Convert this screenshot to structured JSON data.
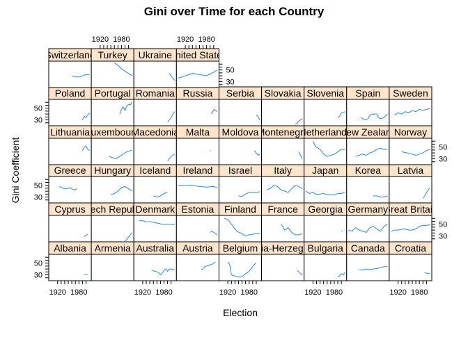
{
  "chart_data": {
    "type": "line",
    "title": "Gini over Time for each Country",
    "xlabel": "Election",
    "ylabel": "Gini Coefficient",
    "xlim": [
      1895,
      2015
    ],
    "ylim": [
      20,
      65
    ],
    "x_ticks": [
      "1920",
      "1980"
    ],
    "y_ticks": [
      "30",
      "50"
    ],
    "grid": false,
    "layout": "lattice 9 columns x 6 rows, strip headers, bottom row first",
    "colors": {
      "line": "#2E86E0",
      "strip": "#FFE5CC",
      "frame": "#000000"
    },
    "panels": [
      {
        "country": "Albania",
        "row": 0,
        "col": 0,
        "x": [
          1996,
          2002,
          2005
        ],
        "y": [
          30,
          31,
          31
        ]
      },
      {
        "country": "Armenia",
        "row": 0,
        "col": 1,
        "x": [],
        "y": []
      },
      {
        "country": "Australia",
        "row": 0,
        "col": 2,
        "x": [
          1945,
          1955,
          1965,
          1970,
          1975,
          1980,
          1985,
          1990,
          1995,
          2000,
          2005,
          2010
        ],
        "y": [
          38,
          36,
          34,
          30,
          33,
          38,
          40,
          36,
          40,
          40,
          39,
          40
        ]
      },
      {
        "country": "Austria",
        "row": 0,
        "col": 3,
        "x": [
          1965,
          1975,
          1985,
          1995,
          2005
        ],
        "y": [
          38,
          44,
          46,
          48,
          52
        ]
      },
      {
        "country": "Belgium",
        "row": 0,
        "col": 4,
        "x": [
          1920,
          1925,
          1930,
          1940,
          1950,
          1960,
          1970,
          1980,
          1990,
          1995,
          2000
        ],
        "y": [
          52,
          48,
          30,
          28,
          26,
          27,
          32,
          36,
          44,
          48,
          50
        ]
      },
      {
        "country": "Bosnia-Herzegovina",
        "row": 0,
        "col": 5,
        "x": [
          1995,
          2000,
          2005,
          2010
        ],
        "y": [
          38,
          35,
          32,
          30
        ]
      },
      {
        "country": "Bulgaria",
        "row": 0,
        "col": 6,
        "x": [
          1990,
          1995,
          2000,
          2005,
          2010
        ],
        "y": [
          26,
          28,
          32,
          30,
          34
        ]
      },
      {
        "country": "Canada",
        "row": 0,
        "col": 7,
        "x": [
          1930,
          1940,
          1950,
          1960,
          1970,
          1980,
          1990,
          2000,
          2010
        ],
        "y": [
          39,
          38,
          40,
          39,
          40,
          41,
          42,
          44,
          44
        ]
      },
      {
        "country": "Croatia",
        "row": 0,
        "col": 8,
        "x": [
          1995,
          2000,
          2005,
          2010
        ],
        "y": [
          34,
          33,
          32,
          33
        ]
      },
      {
        "country": "Cyprus",
        "row": 1,
        "col": 0,
        "x": [
          1995,
          2000,
          2005
        ],
        "y": [
          29,
          31,
          33
        ]
      },
      {
        "country": "Czech Republic",
        "row": 1,
        "col": 1,
        "x": [
          1990,
          1995,
          2000,
          2005,
          2010
        ],
        "y": [
          21,
          24,
          28,
          32,
          36
        ]
      },
      {
        "country": "Denmark",
        "row": 1,
        "col": 2,
        "x": [
          1910,
          1920,
          1930,
          1945,
          1960,
          1975,
          1990,
          2000,
          2010
        ],
        "y": [
          56,
          56,
          54,
          54,
          52,
          50,
          50,
          50,
          49
        ]
      },
      {
        "country": "Estonia",
        "row": 1,
        "col": 3,
        "x": [
          1990,
          1995,
          2000,
          2005,
          2010
        ],
        "y": [
          36,
          38,
          36,
          34,
          32
        ]
      },
      {
        "country": "Finland",
        "row": 1,
        "col": 4,
        "x": [
          1910,
          1920,
          1930,
          1945,
          1960,
          1970,
          1980,
          1990,
          2000,
          2010
        ],
        "y": [
          60,
          58,
          50,
          38,
          34,
          30,
          32,
          33,
          34,
          34
        ]
      },
      {
        "country": "France",
        "row": 1,
        "col": 5,
        "x": [
          1950,
          1955,
          1960,
          1965,
          1970,
          1980,
          1990,
          2000,
          2010
        ],
        "y": [
          50,
          46,
          40,
          42,
          44,
          36,
          32,
          32,
          34
        ]
      },
      {
        "country": "Georgia",
        "row": 1,
        "col": 6,
        "x": [
          2000,
          2003
        ],
        "y": [
          38,
          38
        ]
      },
      {
        "country": "Germany",
        "row": 1,
        "col": 7,
        "x": [
          1900,
          1910,
          1920,
          1930,
          1950,
          1960,
          1970,
          1980,
          1990,
          2000,
          2010
        ],
        "y": [
          40,
          38,
          44,
          40,
          36,
          44,
          46,
          42,
          38,
          46,
          50
        ]
      },
      {
        "country": "Great Britain",
        "row": 1,
        "col": 8,
        "x": [
          1900,
          1910,
          1920,
          1935,
          1950,
          1960,
          1970,
          1980,
          1990,
          2000,
          2010
        ],
        "y": [
          38,
          40,
          40,
          42,
          40,
          40,
          42,
          46,
          48,
          48,
          49
        ]
      },
      {
        "country": "Greece",
        "row": 2,
        "col": 0,
        "x": [
          1925,
          1935,
          1945,
          1955,
          1965,
          1975
        ],
        "y": [
          48,
          45,
          44,
          46,
          42,
          44
        ]
      },
      {
        "country": "Hungary",
        "row": 2,
        "col": 1,
        "x": [
          1950,
          1960,
          1970,
          1980,
          1990,
          2000,
          2010
        ],
        "y": [
          34,
          36,
          40,
          46,
          48,
          44,
          40
        ]
      },
      {
        "country": "Iceland",
        "row": 2,
        "col": 2,
        "x": [
          1950,
          1960,
          1970,
          1980,
          1990
        ],
        "y": [
          32,
          30,
          32,
          36,
          38
        ]
      },
      {
        "country": "Ireland",
        "row": 2,
        "col": 3,
        "x": [
          1900,
          1920,
          1940,
          1960,
          1980,
          2000,
          2010
        ],
        "y": [
          50,
          50,
          50,
          48,
          47,
          48,
          46
        ]
      },
      {
        "country": "Israel",
        "row": 2,
        "col": 4,
        "x": [
          1950,
          1960,
          1970,
          1980,
          1990,
          2000,
          2010
        ],
        "y": [
          32,
          31,
          35,
          38,
          38,
          38,
          39
        ]
      },
      {
        "country": "Italy",
        "row": 2,
        "col": 5,
        "x": [
          1910,
          1920,
          1930,
          1940,
          1950,
          1960,
          1970,
          1980,
          1990,
          2000,
          2010
        ],
        "y": [
          42,
          45,
          50,
          48,
          42,
          40,
          38,
          44,
          50,
          48,
          44
        ]
      },
      {
        "country": "Japan",
        "row": 2,
        "col": 6,
        "x": [
          1900,
          1910,
          1920,
          1930,
          1940,
          1950,
          1960,
          1970,
          1980,
          1990,
          2000,
          2010
        ],
        "y": [
          40,
          36,
          38,
          34,
          35,
          36,
          34,
          34,
          34,
          36,
          36,
          38
        ]
      },
      {
        "country": "Korea",
        "row": 2,
        "col": 7,
        "x": [
          1970,
          1980,
          1990,
          2000,
          2010
        ],
        "y": [
          32,
          32,
          30,
          30,
          32
        ]
      },
      {
        "country": "Latvia",
        "row": 2,
        "col": 8,
        "x": [
          1990,
          1995,
          2000,
          2005,
          2010
        ],
        "y": [
          28,
          32,
          38,
          42,
          46
        ]
      },
      {
        "country": "Lithuania",
        "row": 3,
        "col": 0,
        "x": [
          1990,
          1995,
          2000,
          2005,
          2010
        ],
        "y": [
          44,
          50,
          52,
          46,
          44
        ]
      },
      {
        "country": "Luxembourg",
        "row": 3,
        "col": 1,
        "x": [
          1945,
          1955,
          1965,
          1975,
          1985,
          1995,
          2005,
          2010
        ],
        "y": [
          34,
          32,
          30,
          34,
          38,
          42,
          44,
          44
        ]
      },
      {
        "country": "Macedonia",
        "row": 3,
        "col": 2,
        "x": [
          1990,
          1995,
          2000,
          2005,
          2010
        ],
        "y": [
          26,
          30,
          34,
          36,
          38
        ]
      },
      {
        "country": "Malta",
        "row": 3,
        "col": 3,
        "x": [
          1990,
          1992
        ],
        "y": [
          44,
          44
        ]
      },
      {
        "country": "Moldova",
        "row": 3,
        "col": 4,
        "x": [
          1995,
          2000,
          2005,
          2010
        ],
        "y": [
          44,
          40,
          36,
          38
        ]
      },
      {
        "country": "Montenegro",
        "row": 3,
        "col": 5,
        "x": [
          2000,
          2005,
          2010
        ],
        "y": [
          42,
          36,
          30
        ]
      },
      {
        "country": "Netherlands",
        "row": 3,
        "col": 6,
        "x": [
          1920,
          1925,
          1930,
          1940,
          1950,
          1960,
          1970,
          1980,
          1990,
          2000,
          2010
        ],
        "y": [
          60,
          54,
          50,
          46,
          38,
          34,
          36,
          38,
          42,
          46,
          46
        ]
      },
      {
        "country": "New Zealand",
        "row": 3,
        "col": 7,
        "x": [
          1920,
          1930,
          1940,
          1950,
          1960,
          1970,
          1980,
          1990,
          2000,
          2010
        ],
        "y": [
          34,
          36,
          38,
          36,
          40,
          42,
          46,
          48,
          46,
          46
        ]
      },
      {
        "country": "Norway",
        "row": 3,
        "col": 8,
        "x": [
          1930,
          1945,
          1960,
          1970,
          1980,
          1990,
          2000,
          2010
        ],
        "y": [
          42,
          40,
          38,
          36,
          38,
          40,
          44,
          46
        ]
      },
      {
        "country": "Poland",
        "row": 4,
        "col": 0,
        "x": [
          1990,
          1995,
          2000,
          2005,
          2010
        ],
        "y": [
          30,
          36,
          34,
          38,
          42
        ]
      },
      {
        "country": "Portugal",
        "row": 4,
        "col": 1,
        "x": [
          1975,
          1980,
          1985,
          1990,
          1995,
          2000,
          2005,
          2010
        ],
        "y": [
          40,
          48,
          52,
          46,
          54,
          56,
          56,
          60
        ]
      },
      {
        "country": "Romania",
        "row": 4,
        "col": 2,
        "x": [
          1990,
          1995,
          2000,
          2005,
          2010
        ],
        "y": [
          26,
          30,
          34,
          40,
          44
        ]
      },
      {
        "country": "Russia",
        "row": 4,
        "col": 3,
        "x": [
          1993,
          1997,
          2001,
          2005,
          2010
        ],
        "y": [
          40,
          44,
          48,
          46,
          44
        ]
      },
      {
        "country": "Serbia",
        "row": 4,
        "col": 4,
        "x": [
          2000,
          2005,
          2010
        ],
        "y": [
          38,
          36,
          30
        ]
      },
      {
        "country": "Slovakia",
        "row": 4,
        "col": 5,
        "x": [
          1990,
          1995,
          2000,
          2005,
          2010
        ],
        "y": [
          22,
          24,
          28,
          30,
          32
        ]
      },
      {
        "country": "Slovenia",
        "row": 4,
        "col": 6,
        "x": [
          1990,
          1995,
          2000,
          2005,
          2010
        ],
        "y": [
          34,
          36,
          42,
          42,
          44
        ]
      },
      {
        "country": "Spain",
        "row": 4,
        "col": 7,
        "x": [
          1935,
          1945,
          1955,
          1960,
          1970,
          1980,
          1985,
          1990,
          2000,
          2010
        ],
        "y": [
          34,
          30,
          32,
          38,
          40,
          40,
          34,
          32,
          34,
          40
        ]
      },
      {
        "country": "Sweden",
        "row": 4,
        "col": 8,
        "x": [
          1910,
          1920,
          1930,
          1940,
          1950,
          1960,
          1970,
          1980,
          1990,
          2000,
          2010
        ],
        "y": [
          38,
          42,
          40,
          44,
          42,
          46,
          44,
          48,
          46,
          48,
          50
        ]
      },
      {
        "country": "Switzerland",
        "row": 5,
        "col": 0,
        "x": [
          1960,
          1970,
          1980,
          1990,
          2000,
          2010
        ],
        "y": [
          40,
          38,
          38,
          40,
          42,
          42
        ]
      },
      {
        "country": "Turkey",
        "row": 5,
        "col": 1,
        "x": [
          1960,
          1970,
          1980,
          1990,
          2000,
          2010
        ],
        "y": [
          62,
          58,
          52,
          48,
          44,
          40
        ]
      },
      {
        "country": "Ukraine",
        "row": 5,
        "col": 2,
        "x": [
          1995,
          2000,
          2005,
          2010
        ],
        "y": [
          44,
          40,
          36,
          32
        ]
      },
      {
        "country": "United States",
        "row": 5,
        "col": 3,
        "x": [
          1900,
          1920,
          1940,
          1960,
          1980,
          2000,
          2010
        ],
        "y": [
          36,
          40,
          44,
          42,
          40,
          46,
          50
        ]
      }
    ]
  }
}
